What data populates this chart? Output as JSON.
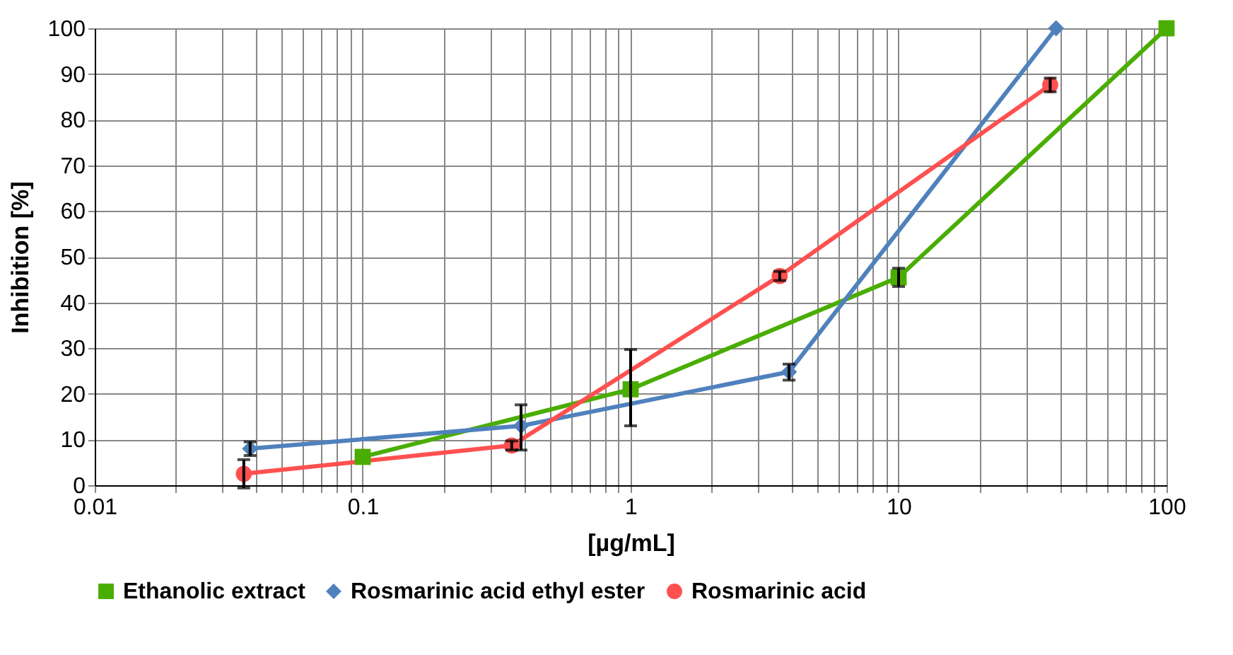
{
  "chart_data": {
    "type": "line",
    "xlabel": "[µg/mL]",
    "ylabel": "Inhibition [%]",
    "log": "x",
    "grid": true,
    "legend": "bottom",
    "xlim": [
      0.01,
      100
    ],
    "ylim": [
      0,
      100
    ],
    "xticks": [
      0.01,
      {
        "value": 0.02,
        "label": null
      },
      {
        "value": 0.03,
        "label": null
      },
      {
        "value": 0.04,
        "label": null
      },
      {
        "value": 0.05,
        "label": null
      },
      {
        "value": 0.06,
        "label": null
      },
      {
        "value": 0.07,
        "label": null
      },
      {
        "value": 0.08,
        "label": null
      },
      {
        "value": 0.09,
        "label": null
      },
      0.1,
      {
        "value": 0.2,
        "label": null
      },
      {
        "value": 0.3,
        "label": null
      },
      {
        "value": 0.4,
        "label": null
      },
      {
        "value": 0.5,
        "label": null
      },
      {
        "value": 0.6,
        "label": null
      },
      {
        "value": 0.7,
        "label": null
      },
      {
        "value": 0.8,
        "label": null
      },
      {
        "value": 0.9,
        "label": null
      },
      1,
      {
        "value": 2,
        "label": null
      },
      {
        "value": 3,
        "label": null
      },
      {
        "value": 4,
        "label": null
      },
      {
        "value": 5,
        "label": null
      },
      {
        "value": 6,
        "label": null
      },
      {
        "value": 7,
        "label": null
      },
      {
        "value": 8,
        "label": null
      },
      {
        "value": 9,
        "label": null
      },
      10,
      {
        "value": 20,
        "label": null
      },
      {
        "value": 30,
        "label": null
      },
      {
        "value": 40,
        "label": null
      },
      {
        "value": 50,
        "label": null
      },
      {
        "value": 60,
        "label": null
      },
      {
        "value": 70,
        "label": null
      },
      {
        "value": 80,
        "label": null
      },
      {
        "value": 90,
        "label": null
      },
      100
    ],
    "yticks": [
      0,
      10,
      20,
      30,
      40,
      50,
      60,
      70,
      80,
      90,
      100
    ],
    "series": [
      {
        "name": "Ethanolic extract",
        "color": "#4aad01",
        "marker": "square",
        "x": [
          0.1,
          1,
          10,
          100
        ],
        "values": [
          6.2,
          21,
          45.5,
          100
        ],
        "errors": [
          null,
          [
            13,
            29.7
          ],
          2,
          null
        ]
      },
      {
        "name": "Rosmarinic acid ethyl ester",
        "color": "#4f81bd",
        "marker": "diamond",
        "x": [
          0.038,
          0.39,
          3.9,
          38.7
        ],
        "values": [
          8,
          13,
          24.8,
          100
        ],
        "errors": [
          1.5,
          [
            7.7,
            17.6
          ],
          [
            23,
            26.5
          ],
          null
        ]
      },
      {
        "name": "Rosmarinic acid",
        "color": "#ff5050",
        "marker": "circle",
        "x": [
          0.036,
          0.36,
          3.6,
          36.8
        ],
        "values": [
          2.5,
          8.7,
          45.8,
          87.6
        ],
        "errors": [
          3.1,
          1,
          1,
          1.5
        ]
      }
    ]
  }
}
